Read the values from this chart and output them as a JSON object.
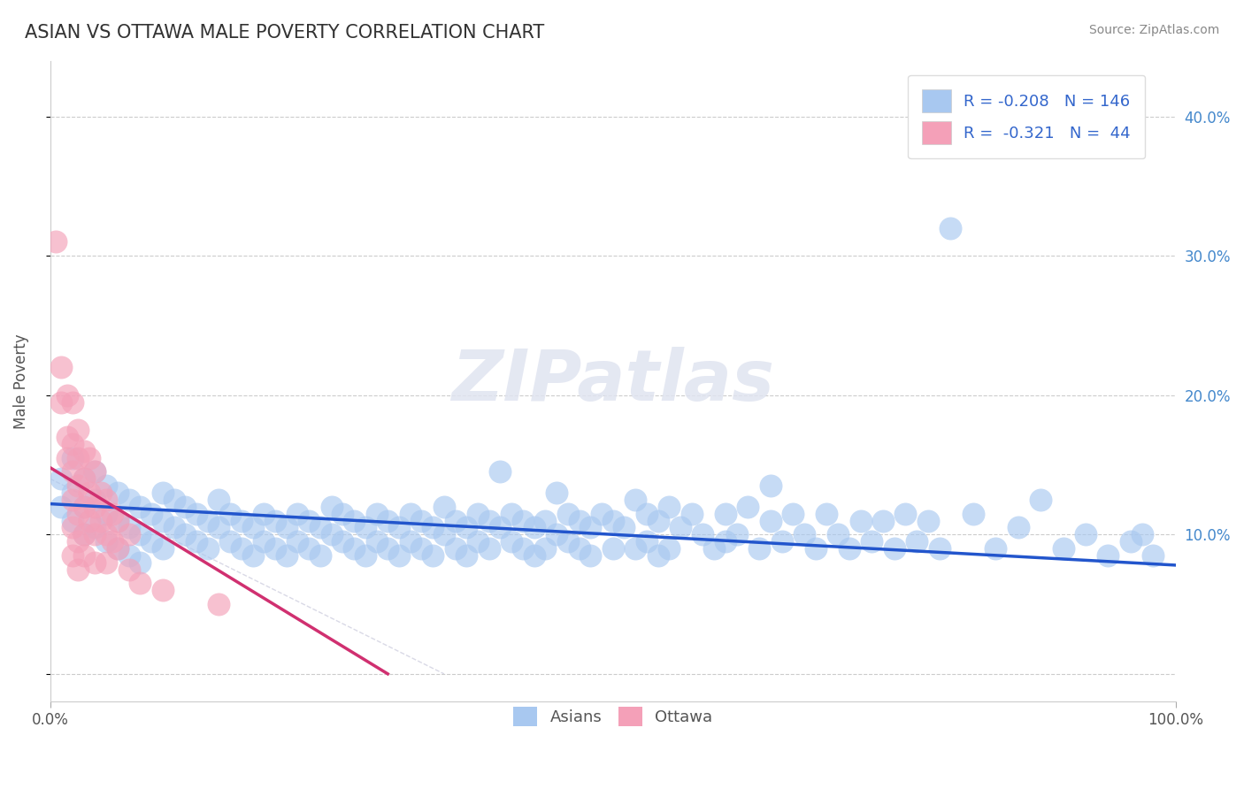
{
  "title": "ASIAN VS OTTAWA MALE POVERTY CORRELATION CHART",
  "source": "Source: ZipAtlas.com",
  "ylabel": "Male Poverty",
  "xlim": [
    0.0,
    1.0
  ],
  "ylim": [
    -0.02,
    0.44
  ],
  "yticks": [
    0.0,
    0.1,
    0.2,
    0.3,
    0.4
  ],
  "right_ytick_labels": [
    "",
    "10.0%",
    "20.0%",
    "30.0%",
    "40.0%"
  ],
  "xticks": [
    0.0,
    1.0
  ],
  "xtick_labels": [
    "0.0%",
    "100.0%"
  ],
  "asian_R": -0.208,
  "asian_N": 146,
  "ottawa_R": -0.321,
  "ottawa_N": 44,
  "asian_color": "#a8c8f0",
  "ottawa_color": "#f4a0b8",
  "asian_line_color": "#2255cc",
  "ottawa_line_color": "#d03070",
  "background_color": "#ffffff",
  "legend_text_color": "#3366cc",
  "watermark_text": "ZIPatlas",
  "asian_line_x": [
    0.0,
    1.0
  ],
  "asian_line_y": [
    0.122,
    0.078
  ],
  "ottawa_line_x": [
    0.0,
    0.3
  ],
  "ottawa_line_y": [
    0.148,
    0.0
  ],
  "ref_line_x": [
    0.0,
    1.0
  ],
  "ref_line_y": [
    0.0,
    0.0
  ],
  "asian_scatter": [
    [
      0.01,
      0.14
    ],
    [
      0.01,
      0.12
    ],
    [
      0.02,
      0.155
    ],
    [
      0.02,
      0.13
    ],
    [
      0.02,
      0.11
    ],
    [
      0.03,
      0.14
    ],
    [
      0.03,
      0.12
    ],
    [
      0.03,
      0.1
    ],
    [
      0.04,
      0.145
    ],
    [
      0.04,
      0.125
    ],
    [
      0.04,
      0.105
    ],
    [
      0.05,
      0.135
    ],
    [
      0.05,
      0.115
    ],
    [
      0.05,
      0.095
    ],
    [
      0.06,
      0.13
    ],
    [
      0.06,
      0.11
    ],
    [
      0.06,
      0.09
    ],
    [
      0.07,
      0.125
    ],
    [
      0.07,
      0.105
    ],
    [
      0.07,
      0.085
    ],
    [
      0.08,
      0.12
    ],
    [
      0.08,
      0.1
    ],
    [
      0.08,
      0.08
    ],
    [
      0.09,
      0.115
    ],
    [
      0.09,
      0.095
    ],
    [
      0.1,
      0.13
    ],
    [
      0.1,
      0.11
    ],
    [
      0.1,
      0.09
    ],
    [
      0.11,
      0.125
    ],
    [
      0.11,
      0.105
    ],
    [
      0.12,
      0.12
    ],
    [
      0.12,
      0.1
    ],
    [
      0.13,
      0.115
    ],
    [
      0.13,
      0.095
    ],
    [
      0.14,
      0.11
    ],
    [
      0.14,
      0.09
    ],
    [
      0.15,
      0.125
    ],
    [
      0.15,
      0.105
    ],
    [
      0.16,
      0.115
    ],
    [
      0.16,
      0.095
    ],
    [
      0.17,
      0.11
    ],
    [
      0.17,
      0.09
    ],
    [
      0.18,
      0.105
    ],
    [
      0.18,
      0.085
    ],
    [
      0.19,
      0.115
    ],
    [
      0.19,
      0.095
    ],
    [
      0.2,
      0.11
    ],
    [
      0.2,
      0.09
    ],
    [
      0.21,
      0.105
    ],
    [
      0.21,
      0.085
    ],
    [
      0.22,
      0.115
    ],
    [
      0.22,
      0.095
    ],
    [
      0.23,
      0.11
    ],
    [
      0.23,
      0.09
    ],
    [
      0.24,
      0.105
    ],
    [
      0.24,
      0.085
    ],
    [
      0.25,
      0.12
    ],
    [
      0.25,
      0.1
    ],
    [
      0.26,
      0.115
    ],
    [
      0.26,
      0.095
    ],
    [
      0.27,
      0.11
    ],
    [
      0.27,
      0.09
    ],
    [
      0.28,
      0.105
    ],
    [
      0.28,
      0.085
    ],
    [
      0.29,
      0.115
    ],
    [
      0.29,
      0.095
    ],
    [
      0.3,
      0.11
    ],
    [
      0.3,
      0.09
    ],
    [
      0.31,
      0.105
    ],
    [
      0.31,
      0.085
    ],
    [
      0.32,
      0.115
    ],
    [
      0.32,
      0.095
    ],
    [
      0.33,
      0.11
    ],
    [
      0.33,
      0.09
    ],
    [
      0.34,
      0.105
    ],
    [
      0.34,
      0.085
    ],
    [
      0.35,
      0.12
    ],
    [
      0.35,
      0.1
    ],
    [
      0.36,
      0.11
    ],
    [
      0.36,
      0.09
    ],
    [
      0.37,
      0.105
    ],
    [
      0.37,
      0.085
    ],
    [
      0.38,
      0.115
    ],
    [
      0.38,
      0.095
    ],
    [
      0.39,
      0.11
    ],
    [
      0.39,
      0.09
    ],
    [
      0.4,
      0.145
    ],
    [
      0.4,
      0.105
    ],
    [
      0.41,
      0.115
    ],
    [
      0.41,
      0.095
    ],
    [
      0.42,
      0.11
    ],
    [
      0.42,
      0.09
    ],
    [
      0.43,
      0.105
    ],
    [
      0.43,
      0.085
    ],
    [
      0.44,
      0.11
    ],
    [
      0.44,
      0.09
    ],
    [
      0.45,
      0.13
    ],
    [
      0.45,
      0.1
    ],
    [
      0.46,
      0.115
    ],
    [
      0.46,
      0.095
    ],
    [
      0.47,
      0.11
    ],
    [
      0.47,
      0.09
    ],
    [
      0.48,
      0.105
    ],
    [
      0.48,
      0.085
    ],
    [
      0.49,
      0.115
    ],
    [
      0.5,
      0.11
    ],
    [
      0.5,
      0.09
    ],
    [
      0.51,
      0.105
    ],
    [
      0.52,
      0.125
    ],
    [
      0.52,
      0.09
    ],
    [
      0.53,
      0.115
    ],
    [
      0.53,
      0.095
    ],
    [
      0.54,
      0.11
    ],
    [
      0.54,
      0.085
    ],
    [
      0.55,
      0.12
    ],
    [
      0.55,
      0.09
    ],
    [
      0.56,
      0.105
    ],
    [
      0.57,
      0.115
    ],
    [
      0.58,
      0.1
    ],
    [
      0.59,
      0.09
    ],
    [
      0.6,
      0.115
    ],
    [
      0.6,
      0.095
    ],
    [
      0.61,
      0.1
    ],
    [
      0.62,
      0.12
    ],
    [
      0.63,
      0.09
    ],
    [
      0.64,
      0.11
    ],
    [
      0.64,
      0.135
    ],
    [
      0.65,
      0.095
    ],
    [
      0.66,
      0.115
    ],
    [
      0.67,
      0.1
    ],
    [
      0.68,
      0.09
    ],
    [
      0.69,
      0.115
    ],
    [
      0.7,
      0.1
    ],
    [
      0.71,
      0.09
    ],
    [
      0.72,
      0.11
    ],
    [
      0.73,
      0.095
    ],
    [
      0.74,
      0.11
    ],
    [
      0.75,
      0.09
    ],
    [
      0.76,
      0.115
    ],
    [
      0.77,
      0.095
    ],
    [
      0.78,
      0.11
    ],
    [
      0.79,
      0.09
    ],
    [
      0.8,
      0.32
    ],
    [
      0.82,
      0.115
    ],
    [
      0.84,
      0.09
    ],
    [
      0.86,
      0.105
    ],
    [
      0.88,
      0.125
    ],
    [
      0.9,
      0.09
    ],
    [
      0.92,
      0.1
    ],
    [
      0.94,
      0.085
    ],
    [
      0.96,
      0.095
    ],
    [
      0.97,
      0.1
    ],
    [
      0.98,
      0.085
    ]
  ],
  "ottawa_scatter": [
    [
      0.005,
      0.31
    ],
    [
      0.01,
      0.22
    ],
    [
      0.01,
      0.195
    ],
    [
      0.015,
      0.2
    ],
    [
      0.015,
      0.17
    ],
    [
      0.015,
      0.155
    ],
    [
      0.02,
      0.195
    ],
    [
      0.02,
      0.165
    ],
    [
      0.02,
      0.145
    ],
    [
      0.02,
      0.125
    ],
    [
      0.02,
      0.105
    ],
    [
      0.02,
      0.085
    ],
    [
      0.025,
      0.175
    ],
    [
      0.025,
      0.155
    ],
    [
      0.025,
      0.135
    ],
    [
      0.025,
      0.115
    ],
    [
      0.025,
      0.095
    ],
    [
      0.025,
      0.075
    ],
    [
      0.03,
      0.16
    ],
    [
      0.03,
      0.14
    ],
    [
      0.03,
      0.12
    ],
    [
      0.03,
      0.1
    ],
    [
      0.03,
      0.085
    ],
    [
      0.035,
      0.155
    ],
    [
      0.035,
      0.13
    ],
    [
      0.035,
      0.11
    ],
    [
      0.04,
      0.145
    ],
    [
      0.04,
      0.12
    ],
    [
      0.04,
      0.1
    ],
    [
      0.04,
      0.08
    ],
    [
      0.045,
      0.13
    ],
    [
      0.045,
      0.11
    ],
    [
      0.05,
      0.125
    ],
    [
      0.05,
      0.1
    ],
    [
      0.05,
      0.08
    ],
    [
      0.055,
      0.115
    ],
    [
      0.055,
      0.095
    ],
    [
      0.06,
      0.11
    ],
    [
      0.06,
      0.09
    ],
    [
      0.07,
      0.1
    ],
    [
      0.07,
      0.075
    ],
    [
      0.08,
      0.065
    ],
    [
      0.1,
      0.06
    ],
    [
      0.15,
      0.05
    ]
  ]
}
